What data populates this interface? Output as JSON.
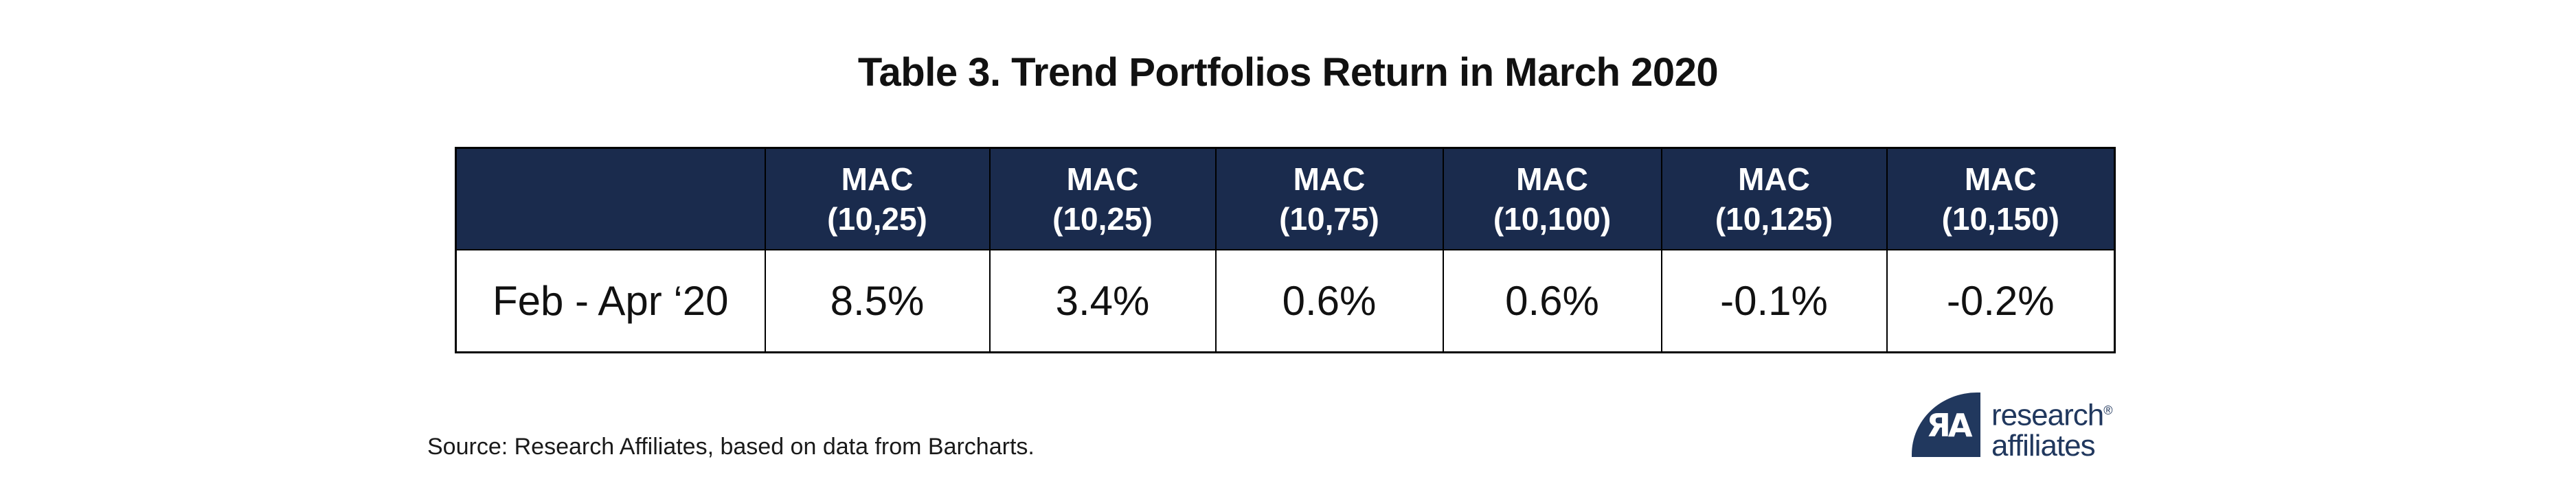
{
  "title": "Table 3. Trend Portfolios Return in March 2020",
  "colors": {
    "header_bg": "#1a2b4d",
    "header_text": "#ffffff",
    "border": "#000000",
    "logo_navy": "#21385e"
  },
  "table": {
    "corner_label": "",
    "columns": [
      {
        "name": "MAC",
        "params": "(10,25)"
      },
      {
        "name": "MAC",
        "params": "(10,25)"
      },
      {
        "name": "MAC",
        "params": "(10,75)"
      },
      {
        "name": "MAC",
        "params": "(10,100)"
      },
      {
        "name": "MAC",
        "params": "(10,125)"
      },
      {
        "name": "MAC",
        "params": "(10,150)"
      }
    ],
    "rows": [
      {
        "label": "Feb - Apr ‘20",
        "values": [
          "8.5%",
          "3.4%",
          "0.6%",
          "0.6%",
          "-0.1%",
          "-0.2%"
        ]
      }
    ]
  },
  "source": "Source: Research Affiliates, based on data from Barcharts.",
  "logo": {
    "monogram": "ЯA",
    "line1": "research",
    "registered": "®",
    "line2": "affiliates"
  },
  "chart_data": {
    "type": "table",
    "title": "Table 3. Trend Portfolios Return in March 2020",
    "columns": [
      "",
      "MAC (10,25)",
      "MAC (10,25)",
      "MAC (10,75)",
      "MAC (10,100)",
      "MAC (10,125)",
      "MAC (10,150)"
    ],
    "rows": [
      [
        "Feb - Apr ‘20",
        "8.5%",
        "3.4%",
        "0.6%",
        "0.6%",
        "-0.1%",
        "-0.2%"
      ]
    ],
    "values_numeric_pct": [
      8.5,
      3.4,
      0.6,
      0.6,
      -0.1,
      -0.2
    ],
    "source": "Source: Research Affiliates, based on data from Barcharts."
  }
}
